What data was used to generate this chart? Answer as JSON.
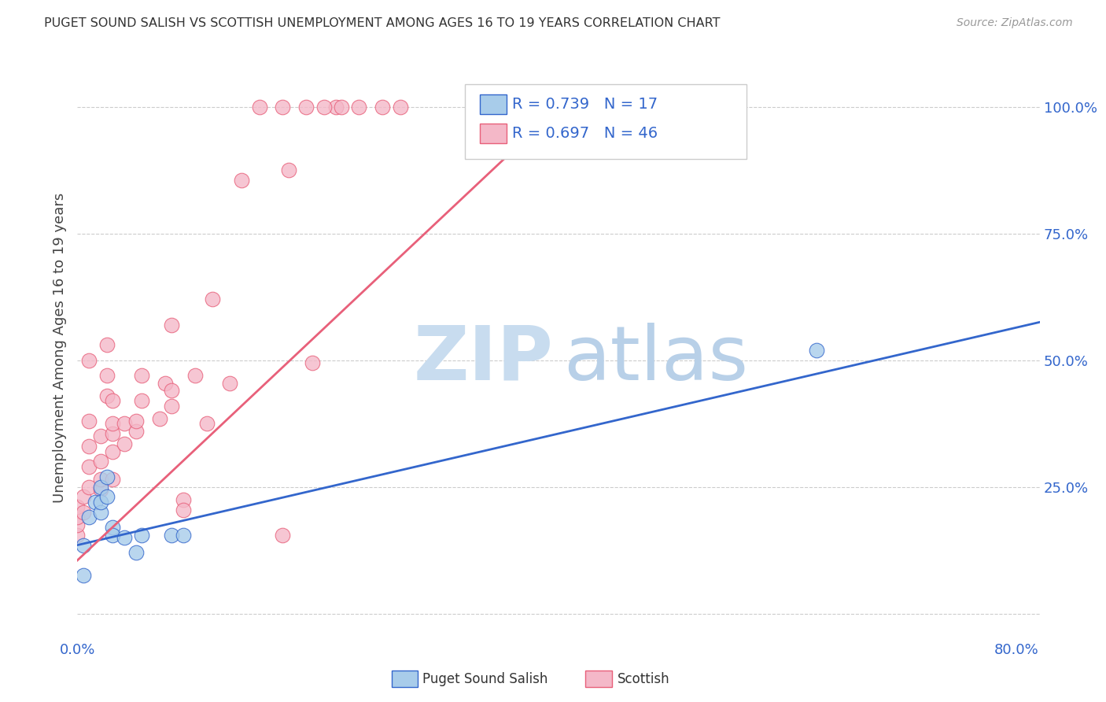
{
  "title": "PUGET SOUND SALISH VS SCOTTISH UNEMPLOYMENT AMONG AGES 16 TO 19 YEARS CORRELATION CHART",
  "source": "Source: ZipAtlas.com",
  "ylabel": "Unemployment Among Ages 16 to 19 years",
  "xlim": [
    0.0,
    0.82
  ],
  "ylim": [
    -0.05,
    1.1
  ],
  "xtick_positions": [
    0.0,
    0.2,
    0.4,
    0.6,
    0.8
  ],
  "xticklabels": [
    "0.0%",
    "",
    "",
    "",
    "80.0%"
  ],
  "ytick_positions": [
    0.0,
    0.25,
    0.5,
    0.75,
    1.0
  ],
  "yticklabels": [
    "",
    "25.0%",
    "50.0%",
    "75.0%",
    "100.0%"
  ],
  "blue_color": "#A8CCEA",
  "pink_color": "#F4B8C8",
  "blue_line_color": "#3366CC",
  "pink_line_color": "#E8607A",
  "legend_R_blue": "0.739",
  "legend_N_blue": "17",
  "legend_R_pink": "0.697",
  "legend_N_pink": "46",
  "blue_scatter_x": [
    0.005,
    0.005,
    0.01,
    0.015,
    0.02,
    0.02,
    0.02,
    0.025,
    0.025,
    0.03,
    0.03,
    0.04,
    0.05,
    0.055,
    0.08,
    0.09,
    0.63
  ],
  "blue_scatter_y": [
    0.135,
    0.075,
    0.19,
    0.22,
    0.2,
    0.22,
    0.25,
    0.27,
    0.23,
    0.17,
    0.155,
    0.15,
    0.12,
    0.155,
    0.155,
    0.155,
    0.52
  ],
  "pink_scatter_x": [
    0.0,
    0.0,
    0.0,
    0.0,
    0.005,
    0.005,
    0.01,
    0.01,
    0.01,
    0.01,
    0.01,
    0.02,
    0.02,
    0.02,
    0.02,
    0.025,
    0.025,
    0.025,
    0.03,
    0.03,
    0.03,
    0.03,
    0.03,
    0.04,
    0.04,
    0.05,
    0.05,
    0.055,
    0.055,
    0.07,
    0.075,
    0.08,
    0.08,
    0.08,
    0.09,
    0.09,
    0.1,
    0.11,
    0.115,
    0.13,
    0.14,
    0.175,
    0.18,
    0.2,
    0.22,
    0.35
  ],
  "pink_scatter_y": [
    0.155,
    0.175,
    0.19,
    0.21,
    0.2,
    0.23,
    0.25,
    0.29,
    0.33,
    0.38,
    0.5,
    0.245,
    0.265,
    0.3,
    0.35,
    0.43,
    0.47,
    0.53,
    0.265,
    0.32,
    0.355,
    0.375,
    0.42,
    0.335,
    0.375,
    0.36,
    0.38,
    0.42,
    0.47,
    0.385,
    0.455,
    0.41,
    0.44,
    0.57,
    0.225,
    0.205,
    0.47,
    0.375,
    0.62,
    0.455,
    0.855,
    0.155,
    0.875,
    0.495,
    1.0,
    1.0
  ],
  "pink_top_x": [
    0.155,
    0.175,
    0.195,
    0.21,
    0.225,
    0.24,
    0.26,
    0.275
  ],
  "pink_top_y": [
    1.0,
    1.0,
    1.0,
    1.0,
    1.0,
    1.0,
    1.0,
    1.0
  ],
  "blue_line_x": [
    0.0,
    0.82
  ],
  "blue_line_y": [
    0.135,
    0.575
  ],
  "pink_line_x": [
    0.0,
    0.42
  ],
  "pink_line_y": [
    0.105,
    1.02
  ],
  "bg_color": "#FFFFFF",
  "grid_color": "#CCCCCC",
  "tick_label_color": "#3366CC",
  "watermark_zip_color": "#C8DCEF",
  "watermark_atlas_color": "#B8D0E8"
}
